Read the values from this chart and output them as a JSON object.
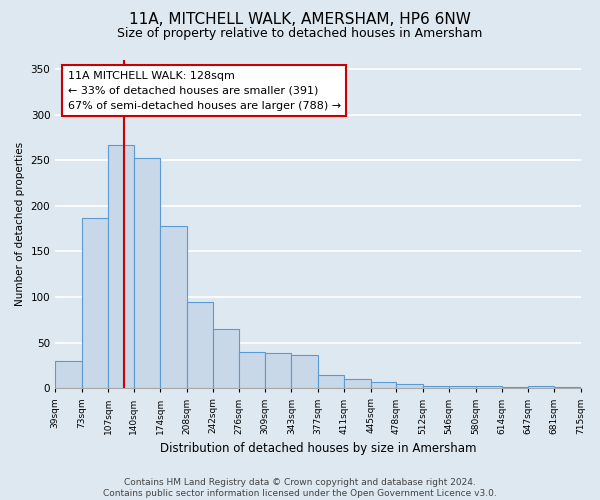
{
  "title": "11A, MITCHELL WALK, AMERSHAM, HP6 6NW",
  "subtitle": "Size of property relative to detached houses in Amersham",
  "xlabel": "Distribution of detached houses by size in Amersham",
  "ylabel": "Number of detached properties",
  "bar_edges": [
    39,
    73,
    107,
    140,
    174,
    208,
    242,
    276,
    309,
    343,
    377,
    411,
    445,
    478,
    512,
    546,
    580,
    614,
    647,
    681,
    715
  ],
  "bar_heights": [
    30,
    187,
    267,
    252,
    178,
    95,
    65,
    40,
    39,
    37,
    14,
    10,
    7,
    5,
    3,
    2,
    2,
    1,
    2,
    1
  ],
  "bar_color": "#c8d8e8",
  "bar_edge_color": "#5b9bd5",
  "vline_x": 128,
  "vline_color": "#cc0000",
  "annotation_line1": "11A MITCHELL WALK: 128sqm",
  "annotation_line2": "← 33% of detached houses are smaller (391)",
  "annotation_line3": "67% of semi-detached houses are larger (788) →",
  "annotation_box_color": "#ffffff",
  "annotation_box_edge_color": "#cc0000",
  "ylim": [
    0,
    360
  ],
  "yticks": [
    0,
    50,
    100,
    150,
    200,
    250,
    300,
    350
  ],
  "tick_labels": [
    "39sqm",
    "73sqm",
    "107sqm",
    "140sqm",
    "174sqm",
    "208sqm",
    "242sqm",
    "276sqm",
    "309sqm",
    "343sqm",
    "377sqm",
    "411sqm",
    "445sqm",
    "478sqm",
    "512sqm",
    "546sqm",
    "580sqm",
    "614sqm",
    "647sqm",
    "681sqm",
    "715sqm"
  ],
  "footer_line1": "Contains HM Land Registry data © Crown copyright and database right 2024.",
  "footer_line2": "Contains public sector information licensed under the Open Government Licence v3.0.",
  "background_color": "#dde8f0",
  "plot_background_color": "#dde8f0",
  "grid_color": "#ffffff",
  "title_fontsize": 11,
  "subtitle_fontsize": 9,
  "annotation_fontsize": 8,
  "footer_fontsize": 6.5
}
